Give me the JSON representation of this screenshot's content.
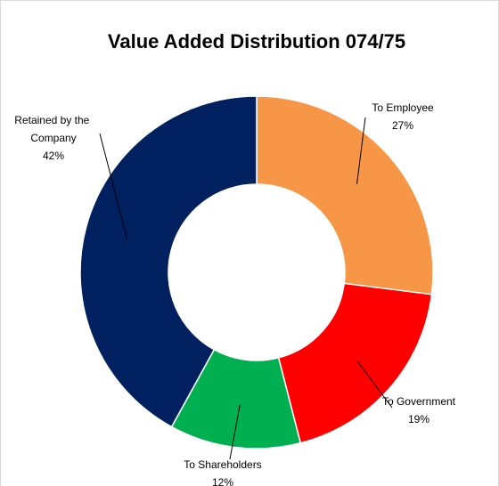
{
  "chart_data": {
    "type": "donut",
    "title": "Value Added Distribution 074/75",
    "categories": [
      "To Employee",
      "To Government",
      "To Shareholders",
      "Retained by the Company"
    ],
    "values": [
      27,
      19,
      12,
      42
    ],
    "value_labels": [
      "27%",
      "19%",
      "12%",
      "42%"
    ],
    "colors": [
      "#F79646",
      "#FF0000",
      "#00B050",
      "#002060"
    ]
  }
}
